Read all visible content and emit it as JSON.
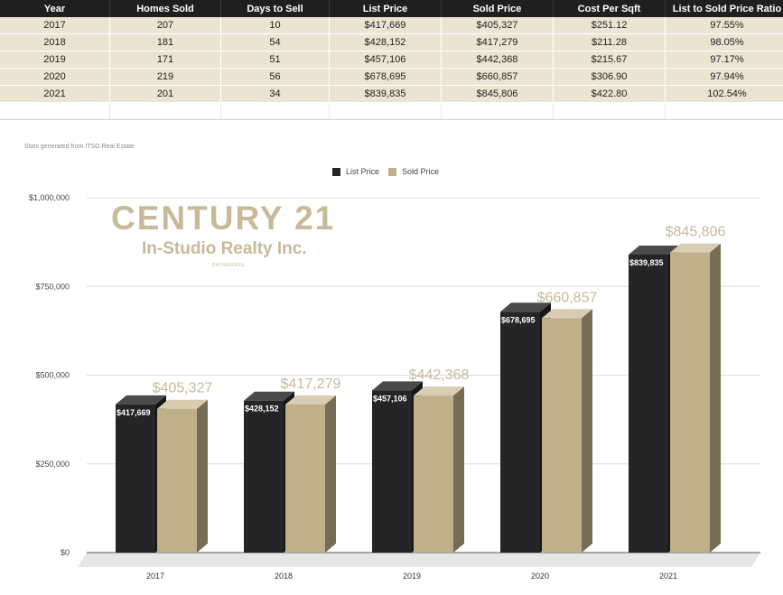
{
  "table": {
    "headers": [
      "Year",
      "Homes Sold",
      "Days to Sell",
      "List Price",
      "Sold Price",
      "Cost Per Sqft",
      "List to Sold Price Ratio"
    ],
    "rows": [
      [
        "2017",
        "207",
        "10",
        "$417,669",
        "$405,327",
        "$251.12",
        "97.55%"
      ],
      [
        "2018",
        "181",
        "54",
        "$428,152",
        "$417,279",
        "$211.28",
        "98.05%"
      ],
      [
        "2019",
        "171",
        "51",
        "$457,106",
        "$442,368",
        "$215.67",
        "97.17%"
      ],
      [
        "2020",
        "219",
        "56",
        "$678,695",
        "$660,857",
        "$306.90",
        "97.94%"
      ],
      [
        "2021",
        "201",
        "34",
        "$839,835",
        "$845,806",
        "$422.80",
        "102.54%"
      ]
    ]
  },
  "source_note": "Stats generated from ITSO Real Estate",
  "logo": {
    "main": "CENTURY 21",
    "sub": "In-Studio Realty Inc.",
    "tag": "BROKERAGE"
  },
  "chart_data": {
    "type": "bar",
    "categories": [
      "2017",
      "2018",
      "2019",
      "2020",
      "2021"
    ],
    "series": [
      {
        "name": "List Price",
        "values": [
          417669,
          428152,
          457106,
          678695,
          839835
        ],
        "labels": [
          "$417,669",
          "$428,152",
          "$457,106",
          "$678,695",
          "$839,835"
        ],
        "color": "#252525"
      },
      {
        "name": "Sold Price",
        "values": [
          405327,
          417279,
          442368,
          660857,
          845806
        ],
        "labels": [
          "$405,327",
          "$417,279",
          "$442,368",
          "$660,857",
          "$845,806"
        ],
        "color": "#bfb08a"
      }
    ],
    "yticks": [
      0,
      250000,
      500000,
      750000,
      1000000
    ],
    "ytick_labels": [
      "$0",
      "$250,000",
      "$500,000",
      "$750,000",
      "$1,000,000"
    ],
    "ylim": [
      0,
      1000000
    ],
    "legend": "top-center",
    "grid": true,
    "style": "3d-bars"
  }
}
